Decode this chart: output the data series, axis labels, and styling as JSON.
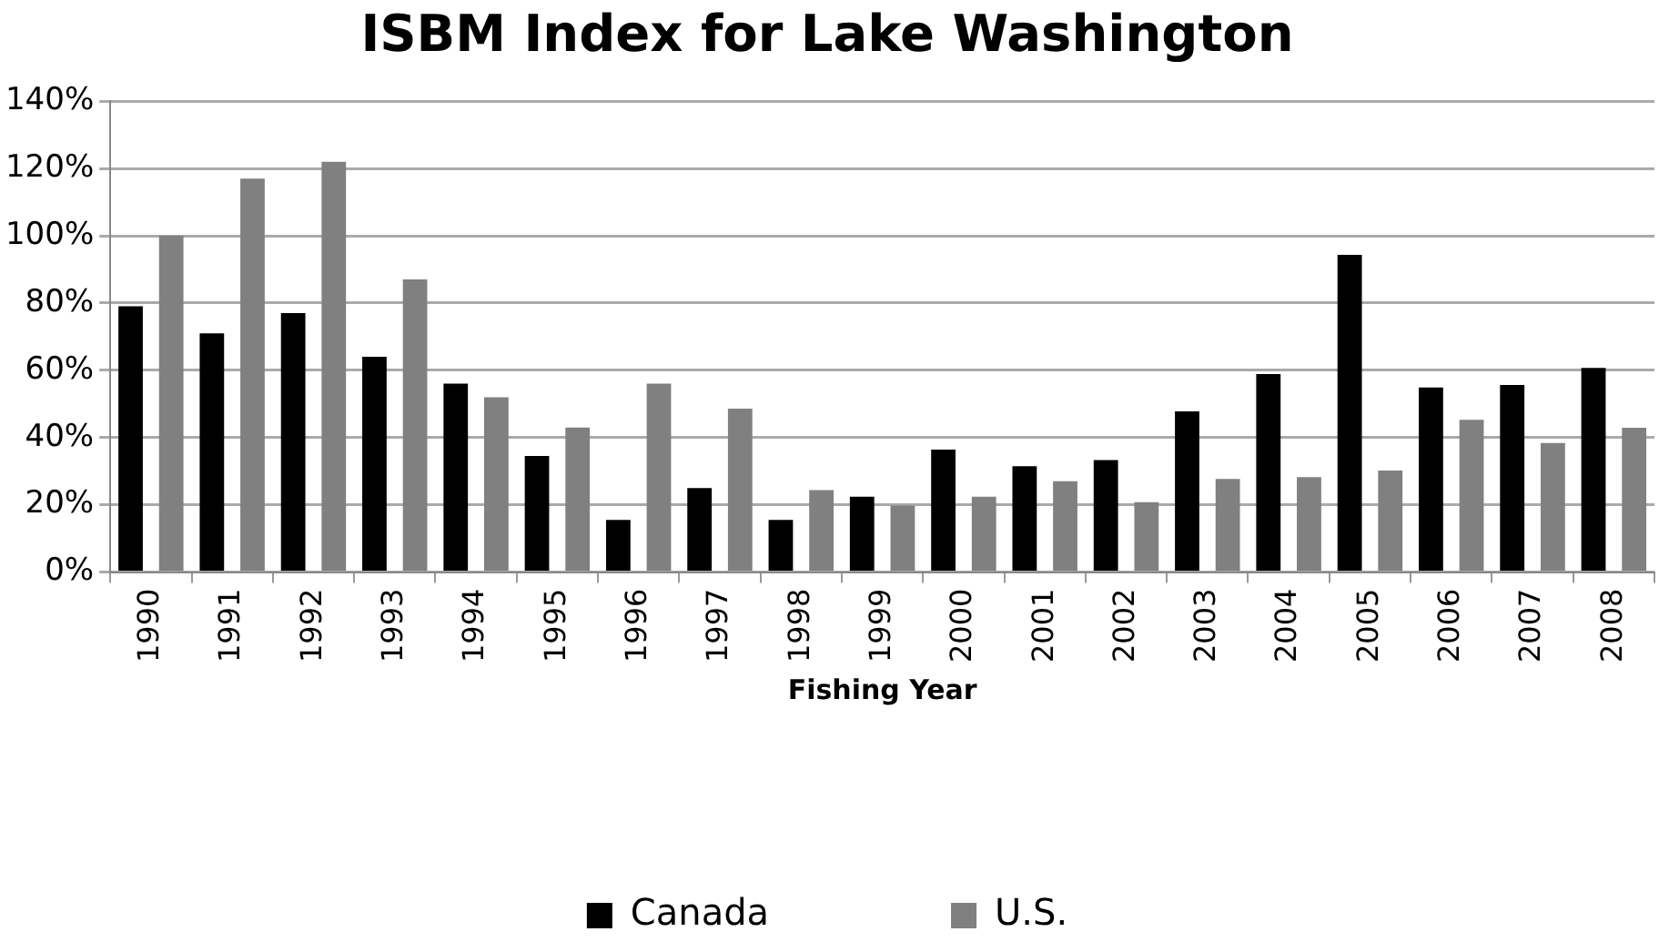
{
  "chart_data": {
    "type": "bar",
    "title": "ISBM Index for Lake Washington",
    "xlabel": "Fishing Year",
    "categories": [
      "1990",
      "1991",
      "1992",
      "1993",
      "1994",
      "1995",
      "1996",
      "1997",
      "1998",
      "1999",
      "2000",
      "2001",
      "2002",
      "2003",
      "2004",
      "2005",
      "2006",
      "2007",
      "2008"
    ],
    "series": [
      {
        "name": "Canada",
        "color": "#000000",
        "values": [
          79,
          71,
          77,
          64,
          56,
          34.5,
          15.5,
          25,
          15.5,
          22.4,
          36.4,
          31.5,
          33.3,
          47.8,
          58.9,
          94.3,
          54.9,
          55.6,
          60.7
        ]
      },
      {
        "name": "U.S.",
        "color": "#808080",
        "values": [
          100,
          117,
          122,
          87,
          52,
          43,
          56,
          48.6,
          24.4,
          19.8,
          22.4,
          27,
          20.8,
          27.7,
          28.2,
          30.2,
          45.3,
          38.4,
          42.9
        ]
      }
    ],
    "ylim": [
      0,
      140
    ],
    "yticks": [
      {
        "value": 0,
        "label": "0%"
      },
      {
        "value": 20,
        "label": "20%"
      },
      {
        "value": 40,
        "label": "40%"
      },
      {
        "value": 60,
        "label": "60%"
      },
      {
        "value": 80,
        "label": "80%"
      },
      {
        "value": 100,
        "label": "100%"
      },
      {
        "value": 120,
        "label": "120%"
      },
      {
        "value": 140,
        "label": "140%"
      }
    ],
    "grid": "y",
    "legend": "bottom"
  }
}
